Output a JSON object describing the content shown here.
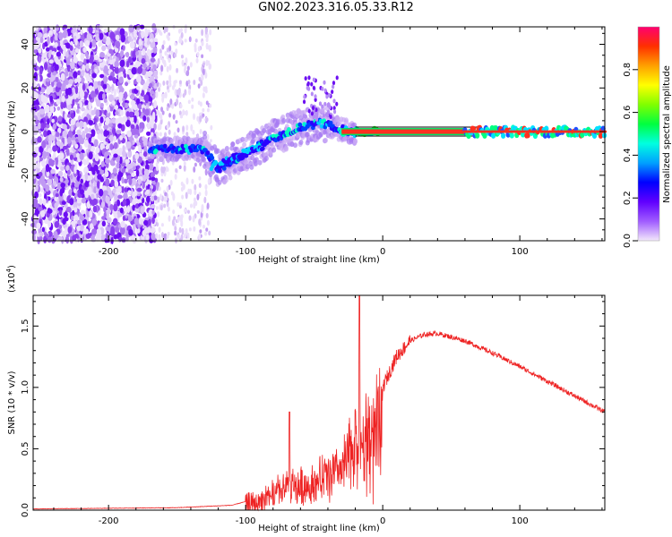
{
  "title": "GN02.2023.316.05.33.R12",
  "chart_data": [
    {
      "type": "heatmap",
      "xlabel": "Height of straight line (km)",
      "ylabel": "Frequency (Hz)",
      "xlim": [
        -255,
        162
      ],
      "ylim": [
        -50,
        48
      ],
      "xticks": [
        "-200",
        "-100",
        "0",
        "100"
      ],
      "yticks": [
        "40",
        "20",
        "0",
        "-20",
        "-40"
      ],
      "colorbar": {
        "label": "Normalized spectral amplitude",
        "range": [
          0,
          1
        ],
        "ticks": [
          "0.0",
          "0.2",
          "0.4",
          "0.6",
          "0.8"
        ],
        "colors": [
          "#f3e9fb",
          "#a05cff",
          "#6000ff",
          "#0000ff",
          "#00a0ff",
          "#00ffe0",
          "#00ff40",
          "#80ff00",
          "#ffff00",
          "#ffa000",
          "#ff3000",
          "#ff0070"
        ]
      },
      "features": {
        "noise_region": [
          -255,
          -165
        ],
        "sparse_region": [
          -165,
          -125
        ],
        "ridge": {
          "x": [
            -170,
            -130,
            -120,
            -100,
            -80,
            -60,
            -45,
            -35,
            -25,
            -15,
            0,
            60,
            162
          ],
          "y": [
            -8,
            -8,
            -17,
            -10,
            -3,
            2,
            4,
            2,
            0,
            -2,
            0,
            0,
            0
          ]
        },
        "tone_line": {
          "x_start": -30,
          "x_end": 60,
          "y": 0
        },
        "band_region": [
          60,
          162
        ]
      }
    },
    {
      "type": "line",
      "xlabel": "Height of straight line (km)",
      "ylabel": "SNR (10 * v/v)",
      "y_multiplier": "(x10",
      "y_multiplier_exp": "4",
      "y_multiplier_close": ")",
      "xlim": [
        -255,
        162
      ],
      "ylim": [
        0,
        1.75
      ],
      "xticks": [
        "-200",
        "-100",
        "0",
        "100"
      ],
      "yticks": [
        "0.0",
        "0.5",
        "1.0",
        "1.5"
      ],
      "series": [
        {
          "color": "#ee2222",
          "envelope": {
            "x": [
              -255,
              -150,
              -110,
              -90,
              -80,
              -70,
              -60,
              -50,
              -40,
              -30,
              -20,
              -15,
              -10,
              -5,
              0,
              10,
              20,
              30,
              40,
              60,
              80,
              100,
              120,
              140,
              162
            ],
            "y": [
              0.01,
              0.02,
              0.04,
              0.1,
              0.2,
              0.3,
              0.3,
              0.35,
              0.45,
              0.5,
              0.9,
              0.75,
              0.95,
              0.97,
              1.0,
              1.25,
              1.38,
              1.43,
              1.44,
              1.38,
              1.28,
              1.17,
              1.05,
              0.93,
              0.8
            ]
          },
          "peak": {
            "x": -17,
            "y": 1.75
          },
          "spike": {
            "x": -68,
            "y": 0.8
          }
        }
      ]
    }
  ]
}
